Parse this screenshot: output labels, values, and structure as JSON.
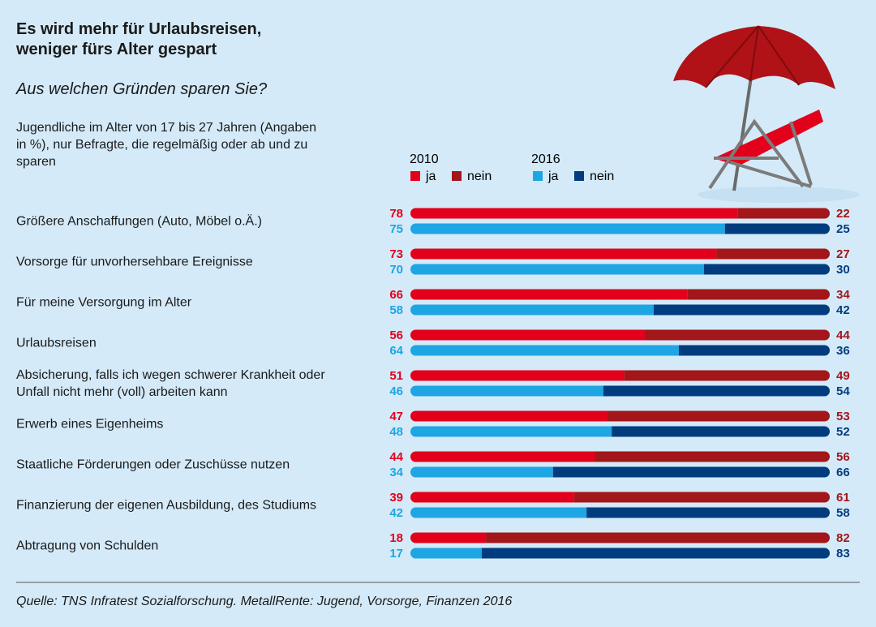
{
  "chart_data": {
    "type": "bar",
    "orientation": "horizontal",
    "stacked": true,
    "title": "Es wird mehr für Urlaubsreisen, weniger fürs Alter gespart",
    "subtitle": "Aus welchen Gründen sparen Sie?",
    "note": "Jugendliche im Alter von 17 bis 27 Jahren (Angaben in %), nur Befragte, die regelmäßig oder ab und zu sparen",
    "source": "Quelle: TNS Infratest Sozialforschung. MetallRente: Jugend, Vorsorge, Finanzen 2016",
    "categories": [
      "Größere Anschaffungen (Auto, Möbel o.Ä.)",
      "Vorsorge für unvorhersehbare Ereignisse",
      "Für meine Versorgung im Alter",
      "Urlaubsreisen",
      "Absicherung, falls ich wegen schwerer Krankheit oder Unfall nicht mehr (voll) arbeiten kann",
      "Erwerb eines Eigenheims",
      "Staatliche Förderungen oder Zuschüsse nutzen",
      "Finanzierung der eigenen Ausbildung, des Studiums",
      "Abtragung von Schulden"
    ],
    "groups": [
      {
        "name": "2010",
        "series": [
          {
            "name": "ja",
            "color": "#e3001b",
            "values": [
              78,
              73,
              66,
              56,
              51,
              47,
              44,
              39,
              18
            ]
          },
          {
            "name": "nein",
            "color": "#a3161a",
            "values": [
              22,
              27,
              34,
              44,
              49,
              53,
              56,
              61,
              82
            ]
          }
        ]
      },
      {
        "name": "2016",
        "series": [
          {
            "name": "ja",
            "color": "#1ea5e3",
            "values": [
              75,
              70,
              58,
              64,
              46,
              48,
              34,
              42,
              17
            ]
          },
          {
            "name": "nein",
            "color": "#003c7e",
            "values": [
              25,
              30,
              42,
              36,
              54,
              52,
              66,
              58,
              83
            ]
          }
        ]
      }
    ]
  }
}
